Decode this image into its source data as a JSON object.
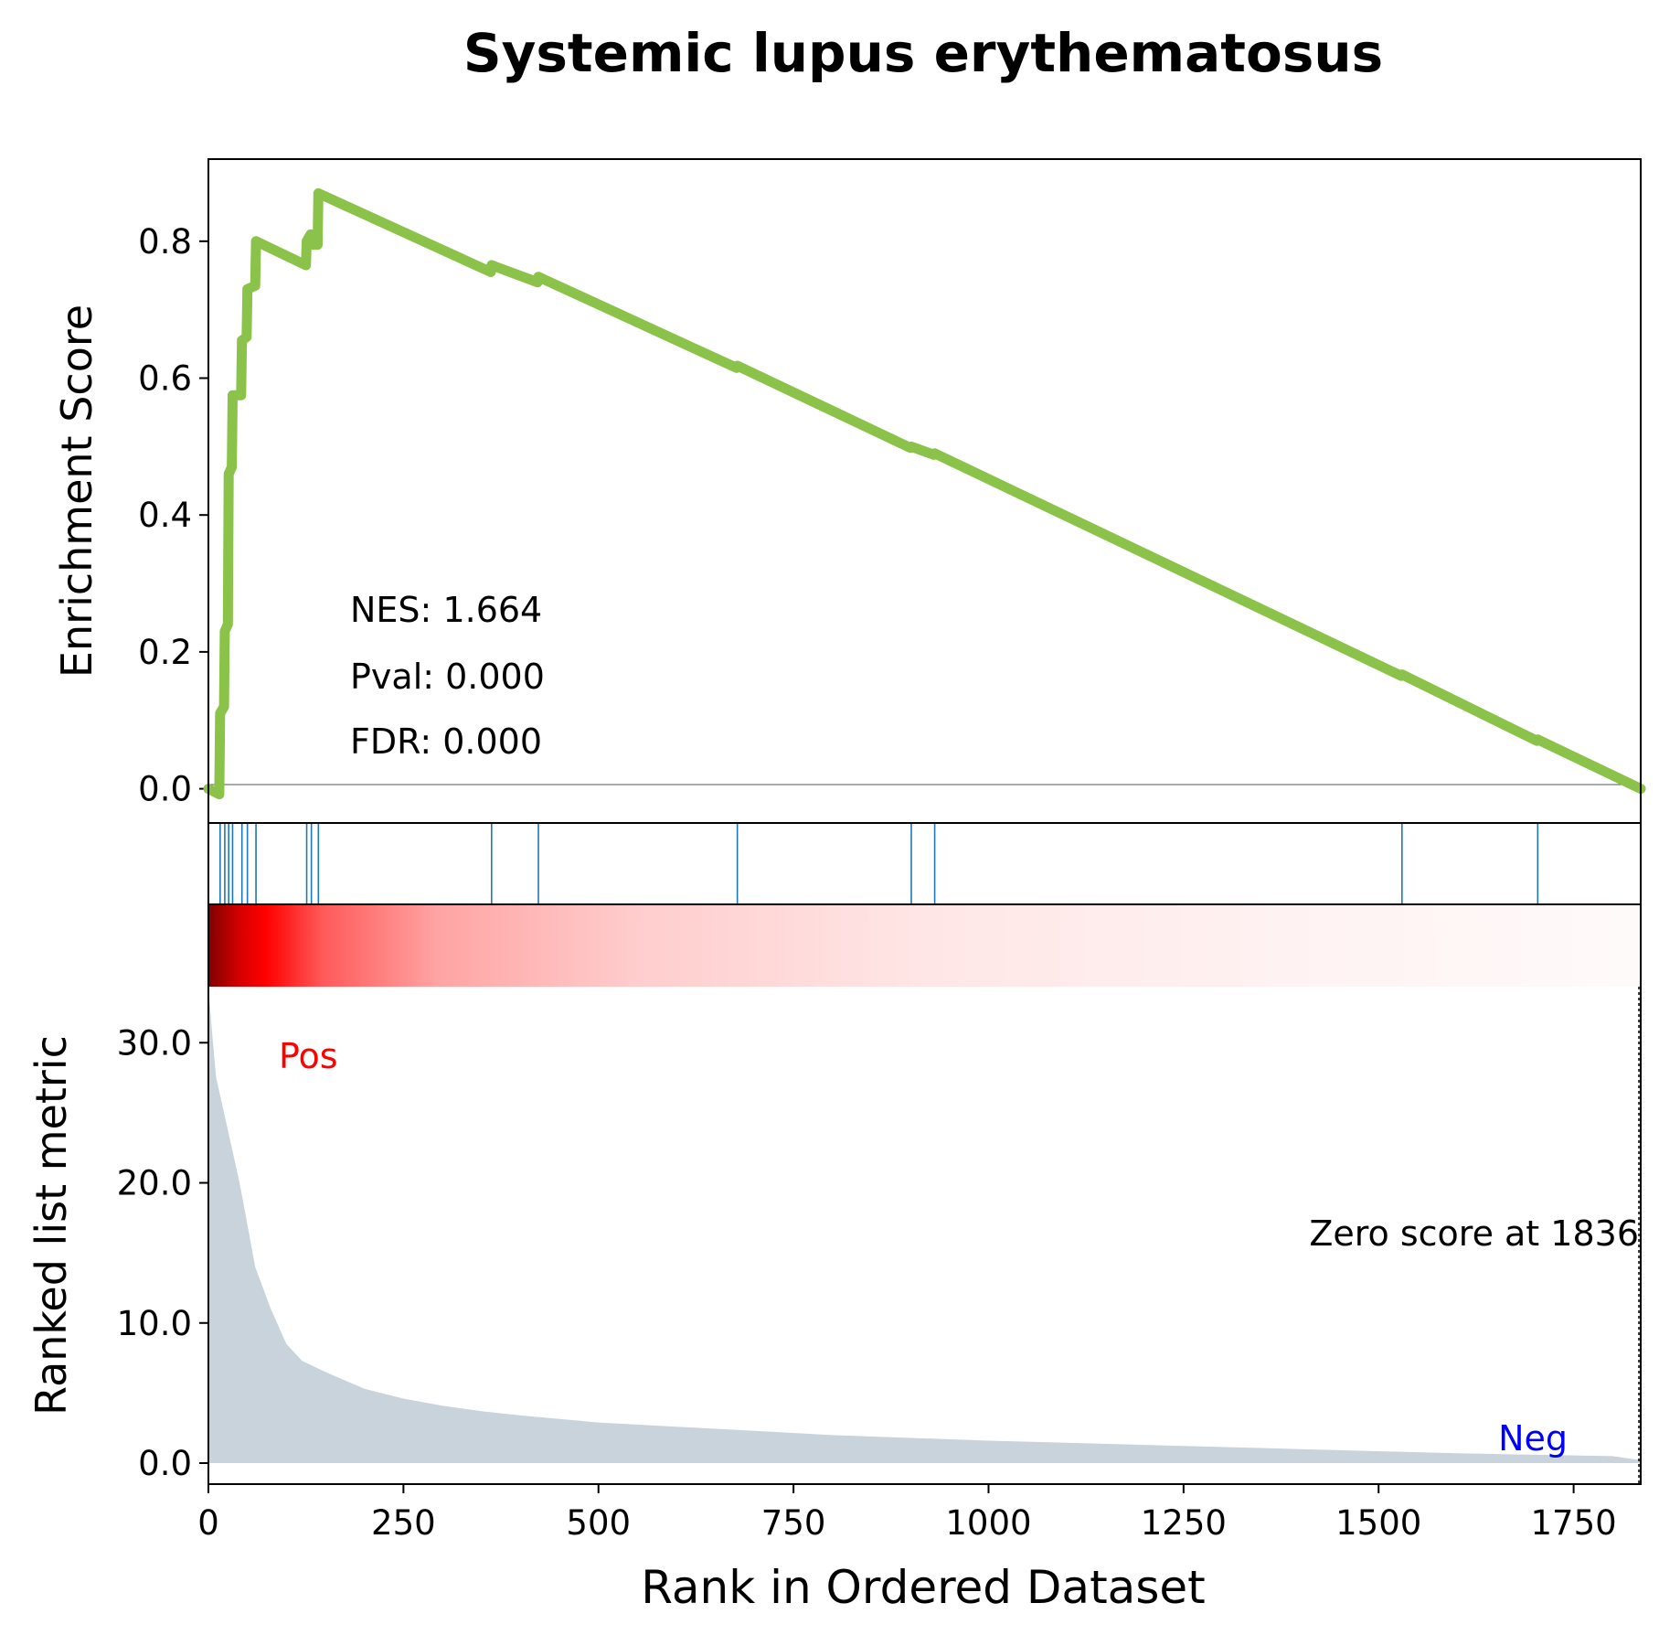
{
  "chart_data": {
    "type": "line",
    "title": "Systemic lupus erythematosus",
    "xlabel": "Rank in Ordered Dataset",
    "xlim": [
      0,
      1836
    ],
    "x_ticks": [
      0,
      250,
      500,
      750,
      1000,
      1250,
      1500,
      1750
    ],
    "enrichment_panel": {
      "ylabel": "Enrichment Score",
      "ylim": [
        -0.05,
        0.92
      ],
      "y_ticks": [
        0.0,
        0.2,
        0.4,
        0.6,
        0.8
      ],
      "y_tick_labels": [
        "0.0",
        "0.2",
        "0.4",
        "0.6",
        "0.8"
      ],
      "line_color": "#8bc34a",
      "series": {
        "x": [
          0,
          14,
          15,
          20,
          21,
          25,
          26,
          30,
          31,
          42,
          43,
          49,
          50,
          60,
          61,
          125,
          126,
          131,
          132,
          140,
          141,
          362,
          363,
          422,
          423,
          677,
          678,
          900,
          901,
          930,
          931,
          1529,
          1530,
          1703,
          1704,
          1836
        ],
        "y": [
          0.0,
          -0.008,
          0.11,
          0.12,
          0.23,
          0.24,
          0.46,
          0.47,
          0.575,
          0.575,
          0.655,
          0.66,
          0.73,
          0.735,
          0.8,
          0.765,
          0.8,
          0.81,
          0.795,
          0.795,
          0.87,
          0.755,
          0.765,
          0.74,
          0.748,
          0.615,
          0.618,
          0.498,
          0.5,
          0.488,
          0.49,
          0.165,
          0.167,
          0.07,
          0.072,
          0.0
        ]
      },
      "annotations": [
        "NES: 1.664",
        "Pval: 0.000",
        "FDR: 0.000"
      ]
    },
    "hits_panel": {
      "hit_positions": [
        15,
        21,
        26,
        31,
        43,
        50,
        61,
        126,
        132,
        141,
        363,
        423,
        678,
        901,
        931,
        1530,
        1704
      ],
      "color": "#1f77b4"
    },
    "heatmap_strip": {
      "colormap": "red-to-white",
      "color_high": "#7f0000",
      "color_mid": "#ff0000",
      "color_low": "#ffffff"
    },
    "ranked_panel": {
      "ylabel": "Ranked list metric",
      "ylim": [
        -1.5,
        34
      ],
      "y_ticks": [
        0.0,
        10.0,
        20.0,
        30.0
      ],
      "y_tick_labels": [
        "0.0",
        "10.0",
        "20.0",
        "30.0"
      ],
      "fill_color": "#c8d3dc",
      "series": {
        "x": [
          0,
          5,
          10,
          20,
          30,
          40,
          50,
          60,
          80,
          100,
          120,
          150,
          200,
          250,
          300,
          350,
          400,
          500,
          600,
          700,
          800,
          1000,
          1200,
          1400,
          1600,
          1800,
          1836
        ],
        "y": [
          34,
          30.5,
          27.5,
          25,
          22.5,
          20,
          17,
          14,
          11,
          8.5,
          7.3,
          6.5,
          5.3,
          4.6,
          4.1,
          3.7,
          3.4,
          2.9,
          2.6,
          2.3,
          2.0,
          1.6,
          1.3,
          1.0,
          0.7,
          0.5,
          0.2
        ]
      },
      "pos_label": "Pos",
      "neg_label": "Neg",
      "pos_color": "#ff0000",
      "neg_color": "#0000ff",
      "zero_score_label": "Zero score at 1836",
      "zero_score_rank": 1836
    }
  }
}
